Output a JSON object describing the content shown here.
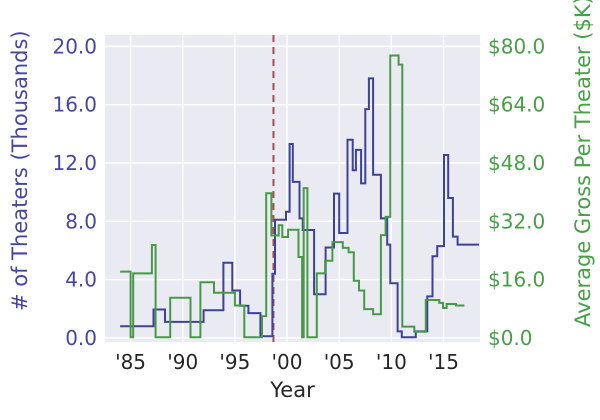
{
  "figure": {
    "xlabel": "Year",
    "ylabel_left": "# of Theaters (Thousands)",
    "ylabel_right": "Average Gross Per Theater ($K)",
    "colors": {
      "plot_bg": "#eaeaf2",
      "grid": "#ffffff",
      "theaters_line": "#3e4295",
      "left_axis_text": "#4646a4",
      "gross_line": "#479947",
      "right_axis_text": "#46a046",
      "event_vline": "#a15353",
      "xtick_text": "#262626"
    }
  },
  "chart_data": {
    "type": "line",
    "subtype": "step-post-dual-axis",
    "title": "",
    "xlabel": "Year",
    "x_axis": {
      "range": [
        1982.55,
        2018.5
      ],
      "tick_values": [
        1985,
        1990,
        1995,
        2000,
        2005,
        2010,
        2015
      ],
      "tick_labels": [
        "'85",
        "'90",
        "'95",
        "'00",
        "'05",
        "'10",
        "'15"
      ]
    },
    "y_left_axis": {
      "label": "# of Theaters (Thousands)",
      "range": [
        -0.28,
        20.78
      ],
      "tick_values": [
        0,
        4,
        8,
        12,
        16,
        20
      ],
      "tick_labels": [
        "0.0",
        "4.0",
        "8.0",
        "12.0",
        "16.0",
        "20.0"
      ]
    },
    "y_right_axis": {
      "label": "Average Gross Per Theater ($K)",
      "range": [
        -1.12,
        83.12
      ],
      "tick_values": [
        0,
        16,
        32,
        48,
        64,
        80
      ],
      "tick_labels": [
        "$0.0",
        "$16.0",
        "$32.0",
        "$48.0",
        "$64.0",
        "$80.0"
      ]
    },
    "event_vline_year": 1998.7,
    "grid": true,
    "legend": "none",
    "series": [
      {
        "name": "theaters_thousands",
        "axis": "left",
        "end_year": 2018.4,
        "points": [
          [
            1984,
            0.8
          ],
          [
            1987.2,
            1.95
          ],
          [
            1988.3,
            1.1
          ],
          [
            1992,
            1.9
          ],
          [
            1993.9,
            5.15
          ],
          [
            1994.75,
            3.25
          ],
          [
            1995.5,
            2.2
          ],
          [
            1996.3,
            1.7
          ],
          [
            1997.45,
            0.12
          ],
          [
            1998.6,
            4.4
          ],
          [
            1998.85,
            8.1
          ],
          [
            1999.9,
            8.65
          ],
          [
            2000.25,
            13.3
          ],
          [
            2000.55,
            10.7
          ],
          [
            2001.2,
            8.2
          ],
          [
            2001.5,
            7.4
          ],
          [
            2002.6,
            3.0
          ],
          [
            2003.7,
            6.2
          ],
          [
            2004.5,
            9.9
          ],
          [
            2005.0,
            7.2
          ],
          [
            2005.8,
            13.6
          ],
          [
            2006.3,
            11.5
          ],
          [
            2006.6,
            12.9
          ],
          [
            2007.1,
            10.6
          ],
          [
            2007.5,
            15.7
          ],
          [
            2007.85,
            17.8
          ],
          [
            2008.25,
            11.2
          ],
          [
            2009.0,
            8.2
          ],
          [
            2009.6,
            6.4
          ],
          [
            2009.9,
            3.75
          ],
          [
            2010.6,
            0.45
          ],
          [
            2011.0,
            0.05
          ],
          [
            2012.35,
            0.45
          ],
          [
            2013.45,
            2.85
          ],
          [
            2013.95,
            5.6
          ],
          [
            2014.4,
            6.3
          ],
          [
            2015.05,
            12.55
          ],
          [
            2015.45,
            9.6
          ],
          [
            2015.9,
            6.95
          ],
          [
            2016.35,
            6.4
          ]
        ]
      },
      {
        "name": "avg_gross_per_theater_k",
        "axis": "right",
        "end_year": 2017.0,
        "points": [
          [
            1984,
            18.2
          ],
          [
            1985,
            0.2
          ],
          [
            1985.25,
            17.7
          ],
          [
            1987.05,
            25.5
          ],
          [
            1987.4,
            0.2
          ],
          [
            1988.8,
            11.0
          ],
          [
            1990.75,
            0.2
          ],
          [
            1991.7,
            15.3
          ],
          [
            1993.0,
            12.4
          ],
          [
            1995.0,
            8.9
          ],
          [
            1995.9,
            0.2
          ],
          [
            1997.6,
            6.0
          ],
          [
            1998.0,
            39.7
          ],
          [
            1998.5,
            28.1
          ],
          [
            1999.2,
            30.9
          ],
          [
            1999.55,
            27.7
          ],
          [
            2000.1,
            29.7
          ],
          [
            2001.1,
            22.2
          ],
          [
            2001.45,
            0.2
          ],
          [
            2001.6,
            41.1
          ],
          [
            2001.95,
            0.2
          ],
          [
            2002.85,
            17.7
          ],
          [
            2003.65,
            21.2
          ],
          [
            2004.35,
            26.3
          ],
          [
            2005.35,
            24.7
          ],
          [
            2005.9,
            23.5
          ],
          [
            2006.4,
            15.7
          ],
          [
            2006.9,
            13.0
          ],
          [
            2007.4,
            7.9
          ],
          [
            2008.25,
            6.5
          ],
          [
            2009.0,
            28.2
          ],
          [
            2009.45,
            33.2
          ],
          [
            2009.9,
            77.5
          ],
          [
            2010.7,
            75.0
          ],
          [
            2011.05,
            3.1
          ],
          [
            2012.2,
            1.7
          ],
          [
            2013.3,
            10.4
          ],
          [
            2014.6,
            9.6
          ],
          [
            2014.95,
            8.2
          ],
          [
            2015.3,
            9.3
          ],
          [
            2016.2,
            8.9
          ]
        ]
      }
    ]
  }
}
